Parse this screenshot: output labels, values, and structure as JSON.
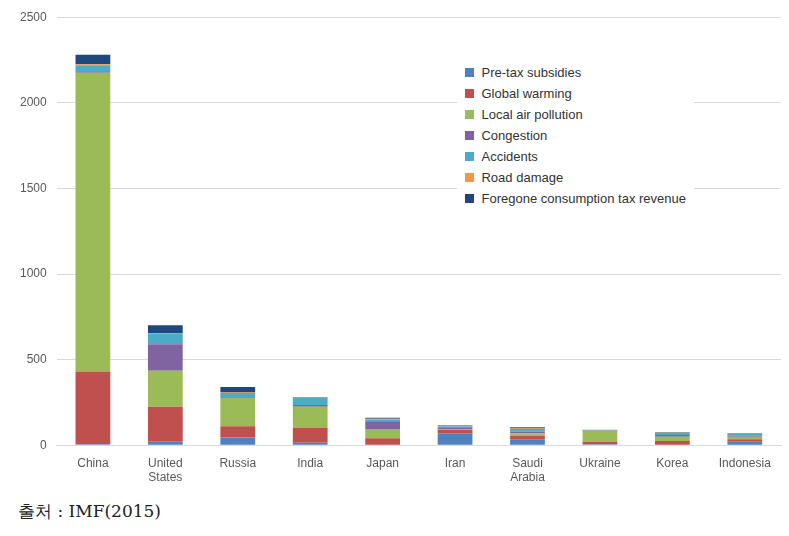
{
  "chart_data": {
    "type": "bar",
    "stacked": true,
    "categories": [
      "China",
      "United States",
      "Russia",
      "India",
      "Japan",
      "Iran",
      "Saudi Arabia",
      "Ukraine",
      "Korea",
      "Indonesia"
    ],
    "series": [
      {
        "name": "Pre-tax subsidies",
        "color": "#4f81bd",
        "values": [
          5,
          20,
          45,
          15,
          0,
          70,
          35,
          5,
          0,
          20
        ]
      },
      {
        "name": "Global warming",
        "color": "#c0504d",
        "values": [
          425,
          205,
          65,
          85,
          40,
          20,
          20,
          15,
          25,
          15
        ]
      },
      {
        "name": "Local air pollution",
        "color": "#9bbb59",
        "values": [
          1745,
          210,
          165,
          125,
          55,
          5,
          15,
          65,
          25,
          15
        ]
      },
      {
        "name": "Congestion",
        "color": "#8064a2",
        "values": [
          10,
          155,
          5,
          10,
          45,
          5,
          10,
          2,
          10,
          5
        ]
      },
      {
        "name": "Accidents",
        "color": "#4bacc6",
        "values": [
          35,
          60,
          25,
          40,
          10,
          10,
          15,
          3,
          12,
          10
        ]
      },
      {
        "name": "Road damage",
        "color": "#f79646",
        "values": [
          5,
          5,
          3,
          2,
          5,
          2,
          2,
          0,
          2,
          2
        ]
      },
      {
        "name": "Foregone consumption tax revenue",
        "color": "#1f497d",
        "values": [
          55,
          45,
          32,
          3,
          5,
          3,
          8,
          0,
          3,
          3
        ]
      }
    ],
    "ylim": [
      0,
      2500
    ],
    "yticks": [
      0,
      500,
      1000,
      1500,
      2000,
      2500
    ],
    "grid": true,
    "legend": "upper right",
    "annotations": [
      "출처 : IMF(2015)"
    ]
  }
}
